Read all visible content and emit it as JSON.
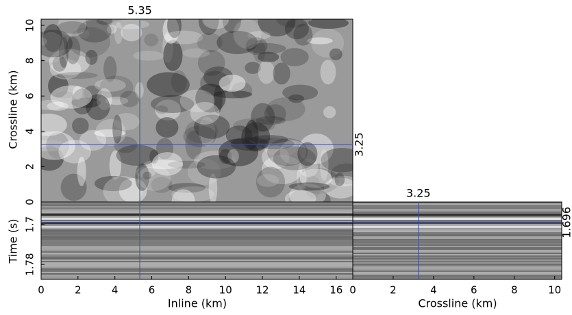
{
  "chart_data": {
    "type": "cube",
    "xlabel": "Inline (km)",
    "xlim": [
      0,
      16.9
    ],
    "xticks": [
      0,
      2,
      4,
      6,
      8,
      10,
      12,
      14,
      16
    ],
    "ylabel": "Crossline (km)",
    "ylim": [
      0,
      10.35
    ],
    "yticks": [
      0,
      2,
      4,
      6,
      8,
      10
    ],
    "zlabel": "Time (s)",
    "zlim": [
      1.655,
      1.81
    ],
    "zticks": [
      1.7,
      1.78
    ],
    "crosshair": {
      "x": 5.35,
      "y": 3.25,
      "z": 1.696
    },
    "crosshair_color": "#3a4f9e"
  }
}
